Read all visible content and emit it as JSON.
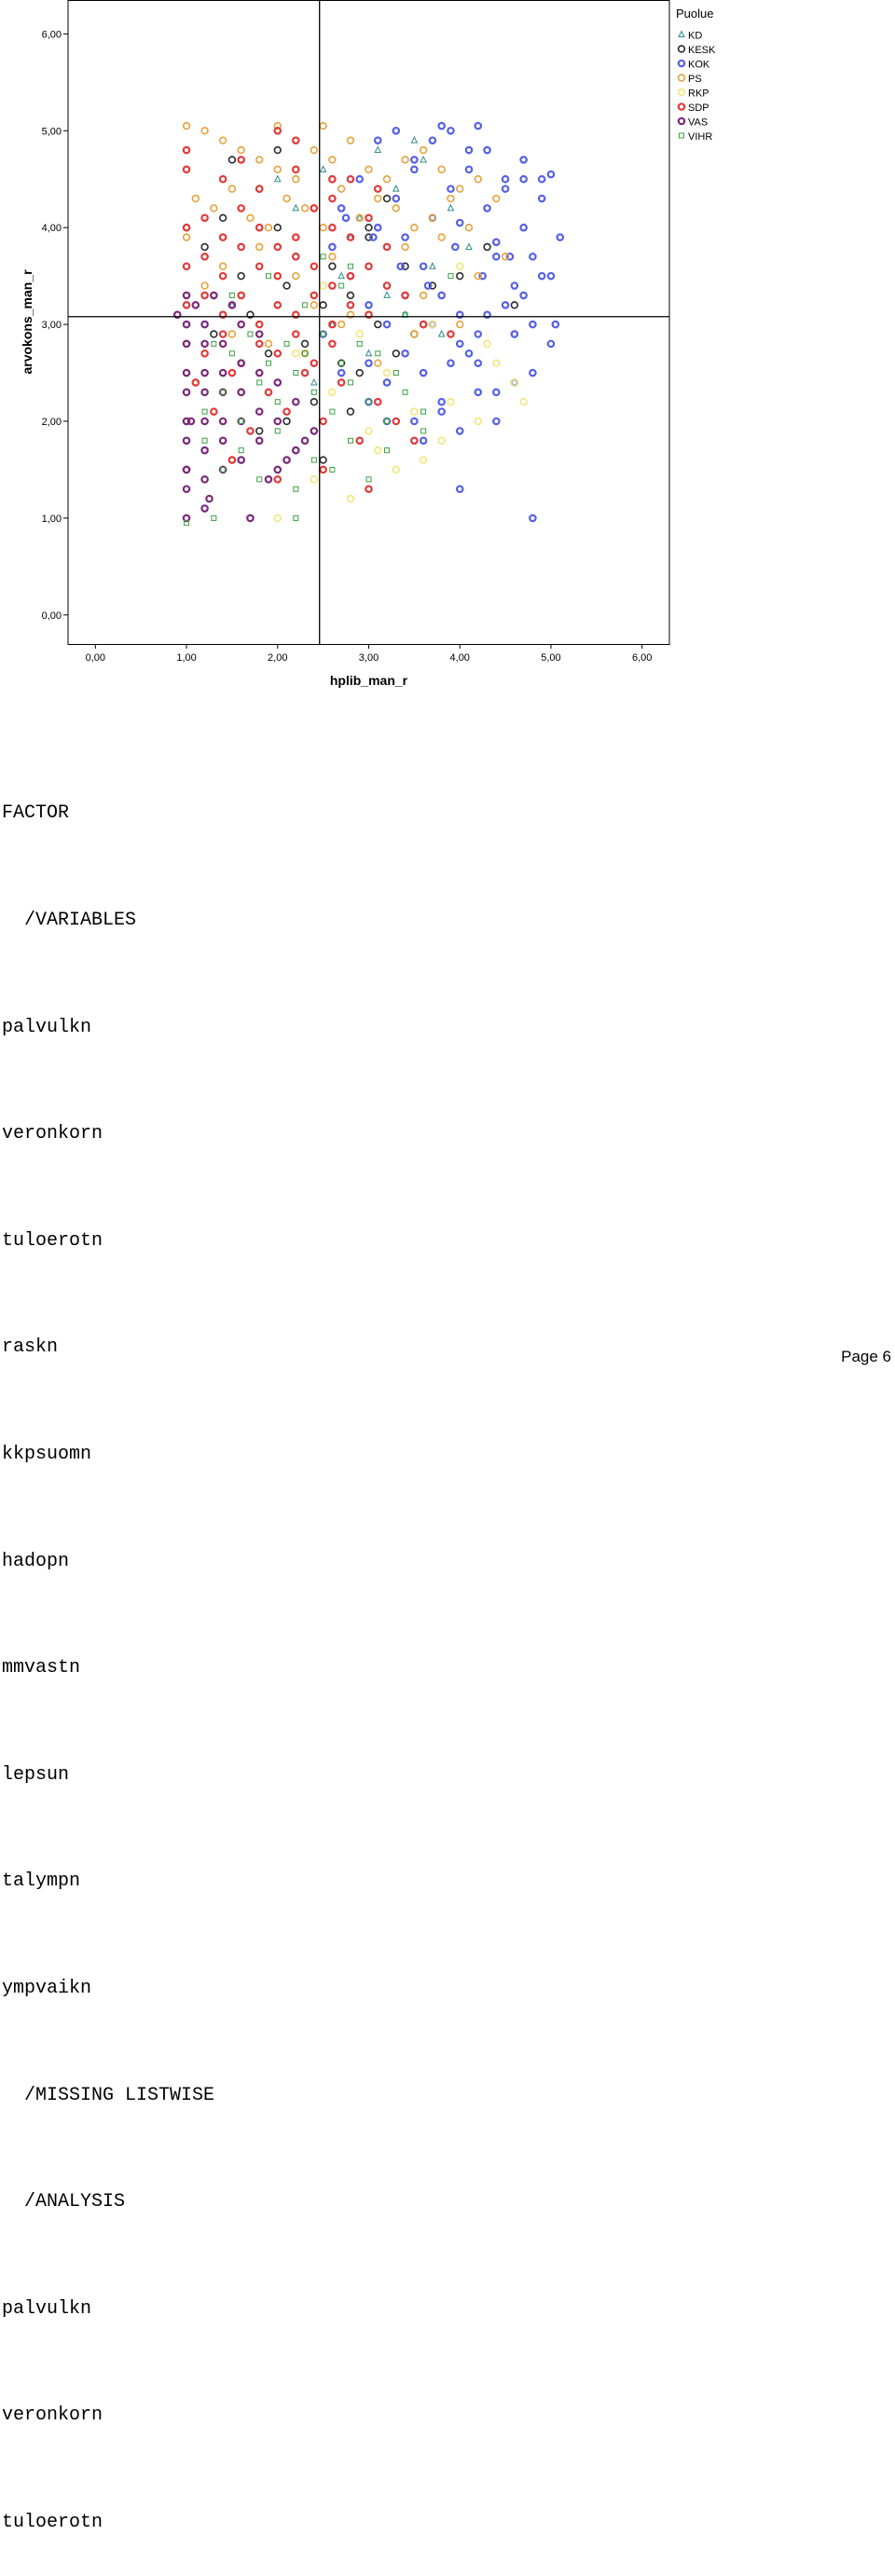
{
  "chart_data": {
    "type": "scatter",
    "title": "",
    "xlabel": "hplib_man_r",
    "ylabel": "arvokons_man_r",
    "xlim": [
      -0.3,
      6.3
    ],
    "ylim": [
      -0.3,
      6.35
    ],
    "x_ticks": [
      "0,00",
      "1,00",
      "2,00",
      "3,00",
      "4,00",
      "5,00",
      "6,00"
    ],
    "y_ticks": [
      "0,00",
      "1,00",
      "2,00",
      "3,00",
      "4,00",
      "5,00",
      "6,00"
    ],
    "grid": false,
    "reference_lines": {
      "x": 2.46,
      "y": 3.08
    },
    "legend": {
      "title": "Puolue",
      "position": "top-right",
      "entries": [
        {
          "name": "KD",
          "color": "#2e8c8c",
          "marker": "triangle"
        },
        {
          "name": "KESK",
          "color": "#2b2b2b",
          "marker": "circle"
        },
        {
          "name": "KOK",
          "color": "#5560e6",
          "marker": "circle-thick"
        },
        {
          "name": "PS",
          "color": "#e6a23a",
          "marker": "circle"
        },
        {
          "name": "RKP",
          "color": "#f2e678",
          "marker": "circle"
        },
        {
          "name": "SDP",
          "color": "#e23a3a",
          "marker": "circle-thick"
        },
        {
          "name": "VAS",
          "color": "#7a2a7a",
          "marker": "circle-thick"
        },
        {
          "name": "VIHR",
          "color": "#3aa040",
          "marker": "square"
        }
      ]
    },
    "series": [
      {
        "name": "KD",
        "x": [
          2.2,
          2.5,
          2.8,
          3.1,
          3.2,
          3.5,
          3.7,
          3.9,
          2.6,
          3.0,
          3.3,
          2.0,
          2.7,
          3.4,
          3.8,
          4.1,
          2.4,
          3.6,
          1.5,
          2.9
        ],
        "y": [
          4.2,
          4.6,
          3.9,
          4.8,
          3.3,
          4.9,
          3.6,
          4.2,
          3.0,
          2.7,
          4.4,
          4.5,
          3.5,
          3.1,
          2.9,
          3.8,
          2.4,
          4.7,
          3.2,
          4.1
        ]
      },
      {
        "name": "KESK",
        "x": [
          1.2,
          1.4,
          1.6,
          1.8,
          2.0,
          2.2,
          2.4,
          2.6,
          2.8,
          3.0,
          3.2,
          3.4,
          1.3,
          1.7,
          1.9,
          2.1,
          2.3,
          2.5,
          2.7,
          2.9,
          3.1,
          3.3,
          3.5,
          3.7,
          1.5,
          2.0,
          2.4,
          2.8,
          3.2,
          3.6,
          4.0,
          4.3,
          1.8,
          2.2,
          2.6,
          3.0,
          4.6,
          1.6,
          2.1,
          2.5
        ],
        "y": [
          3.8,
          4.1,
          3.5,
          4.4,
          4.0,
          3.7,
          4.2,
          4.5,
          3.3,
          3.9,
          4.3,
          3.6,
          2.9,
          3.1,
          2.7,
          3.4,
          2.8,
          3.2,
          2.6,
          2.5,
          3.0,
          2.7,
          2.9,
          3.4,
          4.7,
          4.8,
          2.2,
          2.1,
          2.4,
          3.0,
          3.5,
          3.8,
          1.9,
          1.7,
          3.6,
          4.0,
          3.2,
          2.3,
          2.0,
          1.6
        ]
      },
      {
        "name": "KOK",
        "x": [
          2.6,
          2.8,
          3.0,
          3.2,
          3.4,
          3.6,
          3.8,
          4.0,
          4.2,
          4.4,
          4.6,
          4.8,
          5.0,
          2.7,
          2.9,
          3.1,
          3.3,
          3.5,
          3.7,
          3.9,
          4.1,
          4.3,
          4.5,
          4.7,
          4.9,
          3.0,
          3.2,
          3.4,
          3.6,
          3.8,
          4.0,
          4.2,
          4.4,
          4.6,
          4.8,
          5.0,
          3.1,
          3.3,
          3.5,
          3.7,
          3.9,
          4.1,
          4.3,
          4.5,
          4.7,
          4.9,
          3.5,
          3.8,
          4.0,
          4.2,
          4.4,
          4.6,
          4.8,
          3.4,
          3.7,
          4.1,
          4.5,
          4.9,
          5.1,
          3.6,
          3.9,
          4.3,
          4.7,
          2.5,
          2.7,
          3.0,
          3.2,
          4.0,
          4.8,
          5.05,
          4.55,
          4.25,
          3.95,
          3.65,
          3.35,
          3.05,
          2.75,
          4.0,
          4.7,
          5.0,
          4.2,
          3.8,
          4.4,
          4.6
        ],
        "y": [
          3.8,
          3.5,
          3.2,
          3.0,
          3.9,
          3.6,
          3.3,
          3.1,
          2.9,
          3.7,
          3.4,
          3.0,
          2.8,
          4.2,
          4.5,
          4.0,
          4.3,
          4.6,
          4.1,
          4.4,
          4.8,
          4.2,
          4.5,
          4.0,
          4.3,
          2.6,
          2.4,
          2.7,
          2.5,
          2.2,
          2.8,
          2.6,
          2.3,
          2.9,
          2.5,
          3.5,
          4.9,
          5.0,
          4.7,
          4.9,
          5.0,
          4.6,
          4.8,
          4.4,
          4.7,
          4.5,
          2.0,
          2.1,
          1.9,
          2.3,
          2.0,
          2.4,
          3.7,
          3.3,
          3.0,
          2.7,
          3.2,
          3.5,
          3.9,
          1.8,
          2.6,
          3.1,
          3.3,
          2.9,
          2.5,
          2.2,
          2.0,
          1.3,
          1.0,
          3.0,
          3.7,
          3.5,
          3.8,
          3.4,
          3.6,
          3.9,
          4.1,
          4.05,
          4.5,
          4.55,
          5.05,
          5.05,
          3.85,
          2.9
        ]
      },
      {
        "name": "PS",
        "x": [
          1.0,
          1.2,
          1.4,
          1.6,
          1.8,
          2.0,
          2.2,
          2.4,
          2.6,
          2.8,
          3.0,
          3.2,
          3.4,
          3.6,
          3.8,
          4.0,
          4.2,
          4.4,
          1.1,
          1.3,
          1.5,
          1.7,
          1.9,
          2.1,
          2.3,
          2.5,
          2.7,
          2.9,
          3.1,
          3.3,
          3.5,
          3.7,
          3.9,
          4.1,
          1.0,
          1.4,
          1.8,
          2.2,
          2.6,
          3.0,
          3.4,
          3.8,
          4.2,
          4.5,
          1.2,
          1.6,
          2.0,
          2.4,
          2.8,
          3.2,
          3.6,
          4.0,
          1.5,
          1.9,
          2.3,
          2.7,
          3.1,
          3.5,
          2.0,
          2.5
        ],
        "y": [
          5.05,
          5.0,
          4.9,
          4.8,
          4.7,
          4.6,
          4.5,
          4.8,
          4.7,
          4.9,
          4.6,
          4.5,
          4.7,
          4.8,
          4.6,
          4.4,
          4.5,
          4.3,
          4.3,
          4.2,
          4.4,
          4.1,
          4.0,
          4.3,
          4.2,
          4.0,
          4.4,
          4.1,
          4.3,
          4.2,
          4.0,
          4.1,
          4.3,
          4.0,
          3.9,
          3.6,
          3.8,
          3.5,
          3.7,
          3.6,
          3.8,
          3.9,
          3.5,
          3.7,
          3.4,
          3.3,
          3.5,
          3.2,
          3.1,
          3.4,
          3.3,
          3.0,
          2.9,
          2.8,
          2.7,
          3.0,
          2.6,
          2.9,
          5.05,
          5.05
        ]
      },
      {
        "name": "RKP",
        "x": [
          2.2,
          2.6,
          3.0,
          3.3,
          3.6,
          3.9,
          4.2,
          4.4,
          4.6,
          3.4,
          3.7,
          4.0,
          2.8,
          3.2,
          3.5,
          2.0,
          2.4,
          1.6,
          2.9,
          4.7,
          3.1,
          3.8,
          4.3,
          2.5
        ],
        "y": [
          2.7,
          2.3,
          1.9,
          1.5,
          1.6,
          2.2,
          2.0,
          2.6,
          2.4,
          3.3,
          3.0,
          3.6,
          1.2,
          2.5,
          2.1,
          1.0,
          1.4,
          2.0,
          2.9,
          2.2,
          1.7,
          1.8,
          2.8,
          3.4
        ]
      },
      {
        "name": "SDP",
        "x": [
          1.0,
          1.2,
          1.4,
          1.6,
          1.8,
          2.0,
          2.2,
          2.4,
          2.6,
          2.8,
          3.0,
          3.2,
          1.0,
          1.2,
          1.4,
          1.6,
          1.8,
          2.0,
          2.2,
          2.4,
          2.6,
          2.8,
          3.0,
          3.2,
          1.0,
          1.2,
          1.4,
          1.6,
          1.8,
          2.0,
          2.2,
          2.4,
          2.6,
          2.8,
          3.0,
          1.0,
          1.2,
          1.4,
          1.6,
          1.8,
          2.0,
          2.2,
          2.4,
          2.6,
          1.1,
          1.5,
          1.9,
          2.3,
          2.7,
          3.1,
          1.0,
          1.3,
          1.7,
          2.1,
          2.5,
          2.9,
          3.3,
          1.0,
          1.4,
          1.8,
          2.2,
          2.6,
          1.0,
          1.5,
          2.0,
          2.5,
          3.0,
          3.5,
          2.8,
          2.0,
          1.0,
          1.6,
          2.2,
          2.6,
          3.1,
          3.6,
          3.9,
          3.4
        ],
        "y": [
          4.0,
          4.1,
          3.9,
          4.2,
          4.0,
          3.8,
          3.9,
          4.2,
          4.0,
          3.9,
          4.1,
          3.8,
          3.6,
          3.7,
          3.5,
          3.8,
          3.6,
          3.5,
          3.7,
          3.6,
          3.4,
          3.5,
          3.6,
          3.4,
          3.2,
          3.3,
          3.1,
          3.3,
          3.0,
          3.2,
          3.1,
          3.3,
          3.0,
          3.2,
          3.1,
          2.8,
          2.7,
          2.9,
          2.6,
          2.8,
          2.7,
          2.9,
          2.6,
          2.8,
          2.4,
          2.5,
          2.3,
          2.5,
          2.4,
          2.2,
          2.0,
          2.1,
          1.9,
          2.1,
          2.0,
          1.8,
          2.0,
          4.6,
          4.5,
          4.4,
          4.6,
          4.5,
          1.5,
          1.6,
          1.4,
          1.5,
          1.3,
          1.8,
          4.5,
          5.0,
          4.8,
          4.7,
          4.9,
          4.3,
          4.4,
          3.0,
          2.9,
          3.3
        ]
      },
      {
        "name": "VAS",
        "x": [
          1.0,
          1.0,
          1.0,
          1.0,
          1.0,
          1.0,
          1.0,
          1.0,
          1.0,
          1.0,
          1.2,
          1.2,
          1.2,
          1.2,
          1.2,
          1.2,
          1.2,
          1.2,
          1.4,
          1.4,
          1.4,
          1.4,
          1.4,
          1.4,
          1.6,
          1.6,
          1.6,
          1.6,
          1.6,
          1.8,
          1.8,
          1.8,
          1.8,
          2.0,
          2.0,
          2.0,
          2.2,
          2.2,
          2.4,
          0.9,
          1.1,
          1.3,
          1.5,
          1.05,
          1.25,
          1.7,
          1.9,
          2.1,
          2.3
        ],
        "y": [
          1.0,
          1.3,
          1.5,
          1.8,
          2.0,
          2.3,
          2.5,
          2.8,
          3.0,
          3.3,
          1.1,
          1.4,
          1.7,
          2.0,
          2.3,
          2.5,
          2.8,
          3.0,
          1.5,
          1.8,
          2.0,
          2.3,
          2.5,
          2.8,
          1.6,
          2.0,
          2.3,
          2.6,
          3.0,
          1.8,
          2.1,
          2.5,
          2.9,
          1.5,
          2.0,
          2.4,
          1.7,
          2.2,
          1.9,
          3.1,
          3.2,
          3.3,
          3.2,
          2.0,
          1.2,
          1.0,
          1.4,
          1.6,
          1.8
        ]
      },
      {
        "name": "VIHR",
        "x": [
          1.2,
          1.4,
          1.6,
          1.8,
          2.0,
          2.2,
          2.4,
          2.6,
          2.8,
          3.0,
          3.2,
          3.4,
          3.6,
          1.3,
          1.5,
          1.7,
          1.9,
          2.1,
          2.3,
          2.5,
          2.7,
          2.9,
          3.1,
          3.3,
          1.2,
          1.6,
          2.0,
          2.4,
          2.8,
          3.2,
          3.6,
          1.4,
          1.8,
          2.2,
          2.6,
          3.0,
          3.4,
          1.5,
          1.9,
          2.3,
          2.7,
          2.5,
          2.8,
          3.9,
          1.0,
          2.2,
          1.3
        ],
        "y": [
          2.1,
          2.3,
          2.0,
          2.4,
          2.2,
          2.5,
          2.3,
          2.1,
          2.4,
          2.2,
          2.0,
          2.3,
          2.1,
          2.8,
          2.7,
          2.9,
          2.6,
          2.8,
          2.7,
          2.9,
          2.6,
          2.8,
          2.7,
          2.5,
          1.8,
          1.7,
          1.9,
          1.6,
          1.8,
          1.7,
          1.9,
          1.5,
          1.4,
          1.3,
          1.5,
          1.4,
          3.1,
          3.3,
          3.5,
          3.2,
          3.4,
          3.7,
          3.6,
          3.5,
          0.95,
          1.0,
          1.0
        ]
      }
    ]
  },
  "syntax": {
    "lines": [
      "FACTOR",
      "  /VARIABLES",
      "palvulkn",
      "veronkorn",
      "tuloerotn",
      "raskn",
      "kkpsuomn",
      "hadopn",
      "mmvastn",
      "lepsun",
      "talympn",
      "ympvaikn",
      "  /MISSING LISTWISE",
      "  /ANALYSIS",
      "palvulkn",
      "veronkorn",
      "tuloerotn"
    ]
  },
  "footer": {
    "page_label": "Page 6"
  }
}
